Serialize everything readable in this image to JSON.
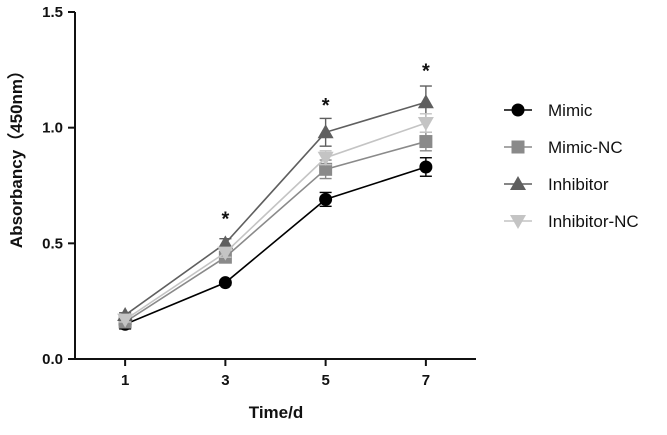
{
  "chart_data": {
    "type": "line",
    "xlabel": "Time/d",
    "ylabel": "Absorbancy（450nm）",
    "x": [
      1,
      3,
      5,
      7
    ],
    "xlim": [
      0,
      8
    ],
    "ylim": [
      0,
      1.5
    ],
    "x_ticks": [
      "1",
      "3",
      "5",
      "7"
    ],
    "y_ticks": [
      "0.0",
      "0.5",
      "1.0",
      "1.5"
    ],
    "legend_position": "right",
    "grid": false,
    "series": [
      {
        "name": "Mimic",
        "marker": "circle",
        "color": "#000000",
        "values": [
          0.15,
          0.33,
          0.69,
          0.83
        ],
        "errors": [
          0.02,
          0.01,
          0.03,
          0.04
        ]
      },
      {
        "name": "Mimic-NC",
        "marker": "square",
        "color": "#8a8a8a",
        "values": [
          0.16,
          0.44,
          0.82,
          0.94
        ],
        "errors": [
          0.01,
          0.02,
          0.04,
          0.04
        ]
      },
      {
        "name": "Inhibitor",
        "marker": "triangle-up",
        "color": "#5f5f5f",
        "values": [
          0.19,
          0.5,
          0.98,
          1.11
        ],
        "errors": [
          0.01,
          0.02,
          0.06,
          0.07
        ]
      },
      {
        "name": "Inhibitor-NC",
        "marker": "triangle-down",
        "color": "#c4c4c4",
        "values": [
          0.17,
          0.46,
          0.87,
          1.02
        ],
        "errors": [
          0.01,
          0.02,
          0.03,
          0.04
        ]
      }
    ],
    "annotations": [
      {
        "text": "*",
        "x": 3,
        "y": 0.62
      },
      {
        "text": "*",
        "x": 5,
        "y": 1.11
      },
      {
        "text": "*",
        "x": 7,
        "y": 1.26
      }
    ]
  }
}
